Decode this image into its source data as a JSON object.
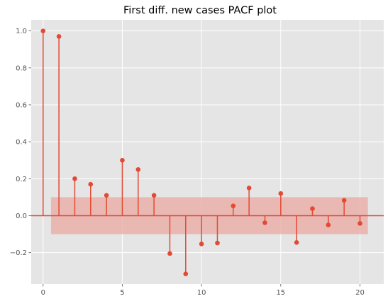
{
  "chart_data": {
    "type": "stem",
    "title": "First diff. new cases PACF plot",
    "xlabel": "",
    "ylabel": "",
    "x": [
      0,
      1,
      2,
      3,
      4,
      5,
      6,
      7,
      8,
      9,
      10,
      11,
      12,
      13,
      14,
      15,
      16,
      17,
      18,
      19,
      20
    ],
    "values": [
      1.0,
      0.97,
      0.2,
      0.17,
      0.11,
      0.3,
      0.25,
      0.11,
      -0.205,
      -0.315,
      -0.153,
      -0.148,
      0.053,
      0.15,
      -0.038,
      0.12,
      -0.145,
      0.038,
      -0.05,
      0.083,
      -0.042
    ],
    "confidence_band": {
      "x_range": [
        0.5,
        20.5
      ],
      "lower": -0.1,
      "upper": 0.1
    },
    "xlim": [
      -0.75,
      21.5
    ],
    "ylim": [
      -0.37,
      1.06
    ],
    "x_ticks": [
      0,
      5,
      10,
      15,
      20
    ],
    "x_tick_labels": [
      "0",
      "5",
      "10",
      "15",
      "20"
    ],
    "y_ticks": [
      -0.2,
      0.0,
      0.2,
      0.4,
      0.6,
      0.8,
      1.0
    ],
    "y_tick_labels": [
      "−0.2",
      "0.0",
      "0.2",
      "0.4",
      "0.6",
      "0.8",
      "1.0"
    ],
    "grid": true,
    "colors": {
      "background": "#e5e5e5",
      "grid": "#ffffff",
      "series": "#e24a33",
      "band": "#e9a8a0",
      "text": "#555555",
      "title": "#000000"
    }
  }
}
